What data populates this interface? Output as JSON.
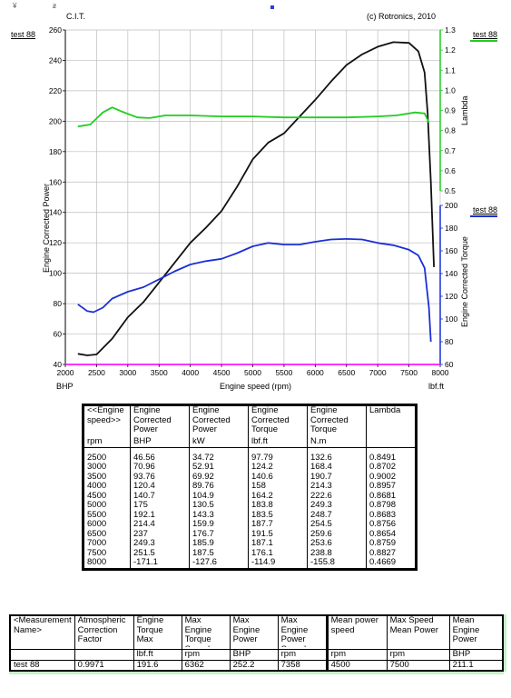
{
  "header": {
    "marks": [
      "¥",
      "ƶ"
    ],
    "subtitle": "C.I.T.",
    "copyright": "(c) Rotronics, 2010"
  },
  "chart_data": {
    "type": "line",
    "xlabel": "Engine speed (rpm)",
    "x_unit_left": "BHP",
    "x_unit_right": "lbf.ft",
    "xlim": [
      2000,
      8000
    ],
    "x_ticks": [
      2000,
      2500,
      3000,
      3500,
      4000,
      4500,
      5000,
      5500,
      6000,
      6500,
      7000,
      7500,
      8000
    ],
    "axes": {
      "power": {
        "label": "Engine Corrected Power",
        "lim": [
          40,
          260
        ],
        "ticks": [
          40,
          60,
          80,
          100,
          120,
          140,
          160,
          180,
          200,
          220,
          240,
          260
        ]
      },
      "lambda": {
        "label": "Lambda",
        "lim": [
          0.5,
          1.3
        ],
        "ticks": [
          0.5,
          0.6,
          0.7,
          0.8,
          0.9,
          1.0,
          1.1,
          1.2,
          1.3
        ],
        "tick_labels": [
          "0.5",
          "0.6",
          "0.7",
          "0.8",
          "0.9",
          "1.0",
          "1.1",
          "1.2",
          "1.3"
        ],
        "color": "#22cc22"
      },
      "torque": {
        "label": "Engine Corrected Torque",
        "lim": [
          60,
          200
        ],
        "ticks": [
          60,
          80,
          100,
          120,
          140,
          160,
          180,
          200
        ],
        "color": "#1a2fd6"
      }
    },
    "legend_labels": {
      "lambda": "test 88",
      "torque": "test 88",
      "power": "test 88"
    },
    "series": [
      {
        "axis": "power",
        "color": "#111111",
        "points": [
          [
            2200,
            47
          ],
          [
            2350,
            46
          ],
          [
            2500,
            46.6
          ],
          [
            2750,
            57
          ],
          [
            3000,
            71
          ],
          [
            3250,
            81
          ],
          [
            3500,
            94
          ],
          [
            3750,
            107
          ],
          [
            4000,
            120
          ],
          [
            4250,
            130
          ],
          [
            4500,
            141
          ],
          [
            4750,
            157
          ],
          [
            5000,
            175
          ],
          [
            5250,
            186
          ],
          [
            5500,
            192
          ],
          [
            5750,
            203
          ],
          [
            6000,
            214
          ],
          [
            6250,
            226
          ],
          [
            6500,
            237
          ],
          [
            6750,
            244
          ],
          [
            7000,
            249
          ],
          [
            7250,
            252
          ],
          [
            7500,
            251.5
          ],
          [
            7650,
            246
          ],
          [
            7750,
            232
          ],
          [
            7800,
            205
          ],
          [
            7850,
            160
          ],
          [
            7900,
            104
          ]
        ]
      },
      {
        "axis": "lambda",
        "color": "#22cc22",
        "points": [
          [
            2200,
            0.82
          ],
          [
            2400,
            0.83
          ],
          [
            2600,
            0.89
          ],
          [
            2750,
            0.915
          ],
          [
            2900,
            0.895
          ],
          [
            3150,
            0.865
          ],
          [
            3350,
            0.862
          ],
          [
            3600,
            0.875
          ],
          [
            4000,
            0.875
          ],
          [
            4500,
            0.87
          ],
          [
            5000,
            0.87
          ],
          [
            5500,
            0.865
          ],
          [
            6000,
            0.865
          ],
          [
            6500,
            0.865
          ],
          [
            7000,
            0.87
          ],
          [
            7300,
            0.875
          ],
          [
            7600,
            0.89
          ],
          [
            7750,
            0.885
          ],
          [
            7820,
            0.84
          ]
        ]
      },
      {
        "axis": "torque",
        "color": "#1a2fd6",
        "points": [
          [
            2200,
            113
          ],
          [
            2350,
            107
          ],
          [
            2450,
            106
          ],
          [
            2600,
            110
          ],
          [
            2750,
            118
          ],
          [
            3000,
            124
          ],
          [
            3250,
            128
          ],
          [
            3500,
            135
          ],
          [
            3750,
            142
          ],
          [
            4000,
            148
          ],
          [
            4250,
            151
          ],
          [
            4500,
            153
          ],
          [
            4750,
            158
          ],
          [
            5000,
            164
          ],
          [
            5250,
            167
          ],
          [
            5500,
            165.5
          ],
          [
            5750,
            165.5
          ],
          [
            6000,
            168
          ],
          [
            6250,
            170
          ],
          [
            6500,
            170.5
          ],
          [
            6750,
            170
          ],
          [
            7000,
            167
          ],
          [
            7250,
            165
          ],
          [
            7500,
            161
          ],
          [
            7650,
            156
          ],
          [
            7750,
            145
          ],
          [
            7820,
            110
          ],
          [
            7850,
            80
          ]
        ]
      }
    ]
  },
  "table1": {
    "headers": [
      "<<Engine speed>>",
      "Engine Corrected Power",
      "Engine Corrected Power",
      "Engine Corrected Torque",
      "Engine Corrected Torque",
      "Lambda"
    ],
    "units": [
      "rpm",
      "BHP",
      "kW",
      "lbf.ft",
      "N.m",
      ""
    ],
    "rows": [
      [
        "2500",
        "46.56",
        "34.72",
        "97.79",
        "132.6",
        "0.8491"
      ],
      [
        "3000",
        "70.96",
        "52.91",
        "124.2",
        "168.4",
        "0.8702"
      ],
      [
        "3500",
        "93.76",
        "69.92",
        "140.6",
        "190.7",
        "0.9002"
      ],
      [
        "4000",
        "120.4",
        "89.76",
        "158",
        "214.3",
        "0.8957"
      ],
      [
        "4500",
        "140.7",
        "104.9",
        "164.2",
        "222.6",
        "0.8681"
      ],
      [
        "5000",
        "175",
        "130.5",
        "183.8",
        "249.3",
        "0.8798"
      ],
      [
        "5500",
        "192.1",
        "143.3",
        "183.5",
        "248.7",
        "0.8683"
      ],
      [
        "6000",
        "214.4",
        "159.9",
        "187.7",
        "254.5",
        "0.8756"
      ],
      [
        "6500",
        "237",
        "176.7",
        "191.5",
        "259.6",
        "0.8654"
      ],
      [
        "7000",
        "249.3",
        "185.9",
        "187.1",
        "253.6",
        "0.8759"
      ],
      [
        "7500",
        "251.5",
        "187.5",
        "176.1",
        "238.8",
        "0.8827"
      ],
      [
        "8000",
        "-171.1",
        "-127.6",
        "-114.9",
        "-155.8",
        "0.4669"
      ]
    ]
  },
  "table2": {
    "headers": [
      "<Measurement Name>",
      "Atmospheric Correction Factor",
      "Engine Torque Max",
      "Max Engine Torque Speed",
      "Max Engine Power",
      "Max Engine Power Speed",
      "Mean power speed",
      "Max Speed Mean Power",
      "Mean Engine Power"
    ],
    "units": [
      "",
      "",
      "lbf.ft",
      "rpm",
      "BHP",
      "rpm",
      "rpm",
      "rpm",
      "BHP"
    ],
    "row": [
      "test 88",
      "0.9971",
      "191.6",
      "6362",
      "252.2",
      "7358",
      "4500",
      "7500",
      "211.1"
    ]
  }
}
